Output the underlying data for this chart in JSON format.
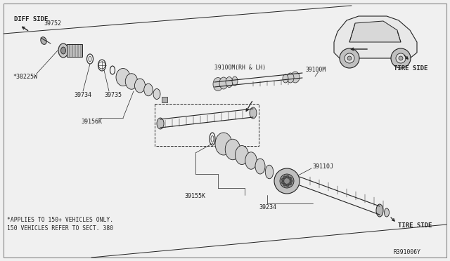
{
  "bg_color": "#f0f0f0",
  "border_color": "#888888",
  "line_color": "#222222",
  "fig_width": 6.4,
  "fig_height": 3.72,
  "diagram_ref": "R391006Y",
  "labels": {
    "diff_side": "DIFF SIDE",
    "tire_side_1": "TIRE SIDE",
    "tire_side_2": "TIRE SIDE",
    "part_39752": "39752",
    "part_38225W": "*38225W",
    "part_39734": "39734",
    "part_39735": "39735",
    "part_39156K": "39156K",
    "part_39100M_full": "39100M(RH & LH)",
    "part_39100M": "39100M",
    "part_39110J": "39110J",
    "part_39155K": "39155K",
    "part_39234": "39234",
    "footnote_line1": "*APPLIES TO 150+ VEHICLES ONLY.",
    "footnote_line2": "150 VEHICLES REFER TO SECT. 380"
  }
}
